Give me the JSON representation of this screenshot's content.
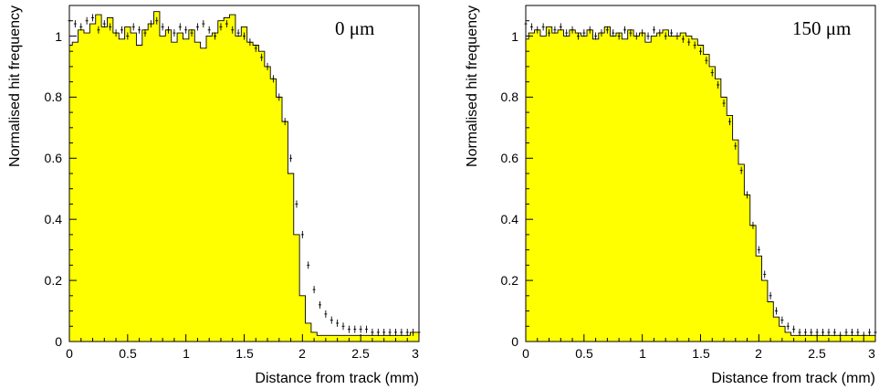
{
  "chart_data": [
    {
      "type": "area",
      "annotation": "0 μm",
      "xlabel": "Distance from track (mm)",
      "ylabel": "Normalised hit frequency",
      "xlim": [
        0,
        3
      ],
      "ylim": [
        0,
        1.1
      ],
      "xticks": [
        "0",
        "0.5",
        "1",
        "1.5",
        "2",
        "2.5",
        "3"
      ],
      "yticks": [
        "0",
        "0.2",
        "0.4",
        "0.6",
        "0.8",
        "1"
      ],
      "fill_color": "#ffff00",
      "simulation_histogram": {
        "x": [
          0.0,
          0.05,
          0.1,
          0.15,
          0.2,
          0.25,
          0.3,
          0.35,
          0.4,
          0.45,
          0.5,
          0.55,
          0.6,
          0.65,
          0.7,
          0.75,
          0.8,
          0.85,
          0.9,
          0.95,
          1.0,
          1.05,
          1.1,
          1.15,
          1.2,
          1.25,
          1.3,
          1.35,
          1.4,
          1.45,
          1.5,
          1.55,
          1.6,
          1.65,
          1.7,
          1.75,
          1.8,
          1.85,
          1.9,
          1.95,
          2.0,
          2.05,
          2.1,
          2.15,
          2.2,
          2.25,
          2.3,
          2.35,
          2.4,
          2.45,
          2.5,
          2.55,
          2.6,
          2.65,
          2.7,
          2.75,
          2.8,
          2.85,
          2.9,
          2.95,
          3.0
        ],
        "y": [
          0.97,
          0.98,
          1.02,
          1.01,
          1.04,
          1.07,
          1.03,
          1.06,
          1.01,
          0.99,
          1.03,
          1.01,
          0.97,
          1.02,
          1.04,
          1.08,
          1.0,
          1.02,
          0.98,
          1.01,
          0.99,
          1.02,
          0.98,
          0.96,
          1.0,
          1.01,
          1.05,
          1.06,
          1.07,
          1.0,
          1.03,
          0.98,
          0.97,
          0.95,
          0.9,
          0.86,
          0.8,
          0.72,
          0.55,
          0.35,
          0.15,
          0.06,
          0.03,
          0.02,
          0.02,
          0.02,
          0.02,
          0.02,
          0.02,
          0.02,
          0.02,
          0.02,
          0.02,
          0.02,
          0.02,
          0.02,
          0.02,
          0.02,
          0.02,
          0.03,
          0.03
        ]
      },
      "data_points": {
        "x": [
          0.0,
          0.05,
          0.1,
          0.15,
          0.2,
          0.25,
          0.3,
          0.35,
          0.4,
          0.45,
          0.5,
          0.55,
          0.6,
          0.65,
          0.7,
          0.75,
          0.8,
          0.85,
          0.9,
          0.95,
          1.0,
          1.05,
          1.1,
          1.15,
          1.2,
          1.25,
          1.3,
          1.35,
          1.4,
          1.45,
          1.5,
          1.55,
          1.6,
          1.65,
          1.7,
          1.75,
          1.8,
          1.85,
          1.9,
          1.95,
          2.0,
          2.05,
          2.1,
          2.15,
          2.2,
          2.25,
          2.3,
          2.35,
          2.4,
          2.45,
          2.5,
          2.55,
          2.6,
          2.65,
          2.7,
          2.75,
          2.8,
          2.85,
          2.9,
          2.95,
          3.0
        ],
        "y": [
          1.05,
          1.04,
          1.03,
          1.05,
          1.06,
          1.02,
          1.04,
          1.03,
          1.01,
          1.02,
          1.0,
          1.03,
          1.02,
          1.01,
          1.04,
          1.05,
          1.03,
          1.02,
          1.01,
          1.03,
          1.02,
          1.01,
          1.03,
          1.04,
          1.02,
          1.0,
          1.03,
          1.04,
          1.02,
          1.01,
          1.0,
          0.98,
          0.96,
          0.93,
          0.9,
          0.86,
          0.8,
          0.72,
          0.6,
          0.45,
          0.35,
          0.25,
          0.17,
          0.12,
          0.09,
          0.07,
          0.06,
          0.05,
          0.04,
          0.04,
          0.04,
          0.04,
          0.03,
          0.03,
          0.03,
          0.03,
          0.03,
          0.03,
          0.03,
          0.03,
          0.03
        ]
      }
    },
    {
      "type": "area",
      "annotation": "150 μm",
      "xlabel": "Distance from track (mm)",
      "ylabel": "Normalised hit frequency",
      "xlim": [
        0,
        3
      ],
      "ylim": [
        0,
        1.1
      ],
      "xticks": [
        "0",
        "0.5",
        "1",
        "1.5",
        "2",
        "2.5",
        "3"
      ],
      "yticks": [
        "0",
        "0.2",
        "0.4",
        "0.6",
        "0.8",
        "1"
      ],
      "fill_color": "#ffff00",
      "simulation_histogram": {
        "x": [
          0.0,
          0.05,
          0.1,
          0.15,
          0.2,
          0.25,
          0.3,
          0.35,
          0.4,
          0.45,
          0.5,
          0.55,
          0.6,
          0.65,
          0.7,
          0.75,
          0.8,
          0.85,
          0.9,
          0.95,
          1.0,
          1.05,
          1.1,
          1.15,
          1.2,
          1.25,
          1.3,
          1.35,
          1.4,
          1.45,
          1.5,
          1.55,
          1.6,
          1.65,
          1.7,
          1.75,
          1.8,
          1.85,
          1.9,
          1.95,
          2.0,
          2.05,
          2.1,
          2.15,
          2.2,
          2.25,
          2.3,
          2.35,
          2.4,
          2.45,
          2.5,
          2.55,
          2.6,
          2.65,
          2.7,
          2.75,
          2.8,
          2.85,
          2.9,
          2.95,
          3.0
        ],
        "y": [
          0.99,
          1.01,
          1.02,
          1.0,
          1.03,
          1.01,
          1.02,
          1.0,
          1.02,
          1.01,
          1.0,
          1.02,
          0.99,
          1.01,
          1.03,
          1.0,
          1.01,
          0.99,
          1.02,
          1.0,
          1.01,
          0.98,
          1.0,
          1.01,
          1.02,
          1.0,
          1.0,
          1.01,
          1.0,
          0.99,
          0.97,
          0.94,
          0.9,
          0.86,
          0.8,
          0.74,
          0.66,
          0.58,
          0.48,
          0.38,
          0.28,
          0.2,
          0.13,
          0.08,
          0.05,
          0.03,
          0.02,
          0.02,
          0.02,
          0.02,
          0.02,
          0.02,
          0.02,
          0.02,
          0.02,
          0.02,
          0.02,
          0.02,
          0.02,
          0.02,
          0.02
        ]
      },
      "data_points": {
        "x": [
          0.0,
          0.05,
          0.1,
          0.15,
          0.2,
          0.25,
          0.3,
          0.35,
          0.4,
          0.45,
          0.5,
          0.55,
          0.6,
          0.65,
          0.7,
          0.75,
          0.8,
          0.85,
          0.9,
          0.95,
          1.0,
          1.05,
          1.1,
          1.15,
          1.2,
          1.25,
          1.3,
          1.35,
          1.4,
          1.45,
          1.5,
          1.55,
          1.6,
          1.65,
          1.7,
          1.75,
          1.8,
          1.85,
          1.9,
          1.95,
          2.0,
          2.05,
          2.1,
          2.15,
          2.2,
          2.25,
          2.3,
          2.35,
          2.4,
          2.45,
          2.5,
          2.55,
          2.6,
          2.65,
          2.7,
          2.75,
          2.8,
          2.85,
          2.9,
          2.95,
          3.0
        ],
        "y": [
          1.04,
          1.03,
          1.02,
          1.03,
          1.01,
          1.02,
          1.03,
          1.01,
          1.02,
          1.0,
          1.01,
          1.02,
          1.0,
          1.01,
          1.02,
          1.01,
          1.0,
          1.02,
          1.01,
          1.0,
          1.01,
          1.0,
          1.02,
          1.01,
          1.0,
          1.01,
          1.0,
          0.99,
          0.98,
          0.97,
          0.95,
          0.92,
          0.88,
          0.84,
          0.78,
          0.72,
          0.64,
          0.56,
          0.48,
          0.38,
          0.3,
          0.22,
          0.15,
          0.1,
          0.07,
          0.05,
          0.04,
          0.03,
          0.03,
          0.03,
          0.03,
          0.03,
          0.03,
          0.03,
          0.02,
          0.03,
          0.03,
          0.03,
          0.02,
          0.03,
          0.03
        ]
      }
    }
  ]
}
